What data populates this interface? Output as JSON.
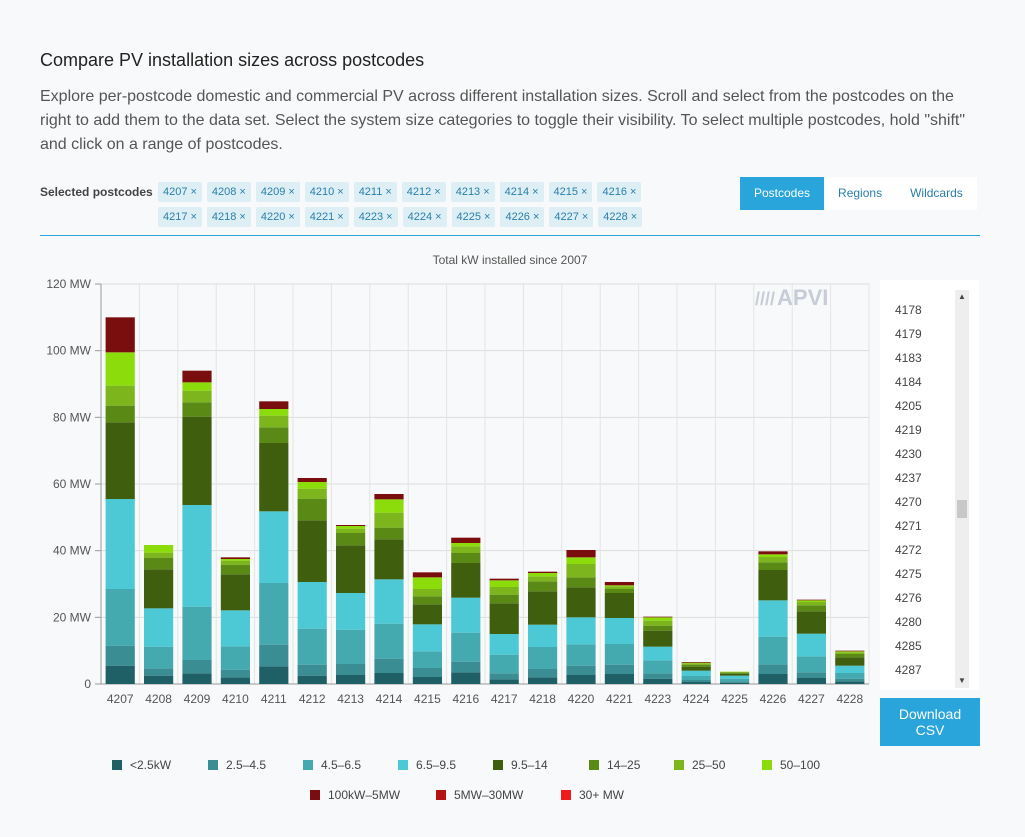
{
  "header": {
    "title": "Compare PV installation sizes across postcodes",
    "description": "Explore per-postcode domestic and commercial PV across different installation sizes. Scroll and select from the postcodes on the right to add them to the data set. Select the system size categories to toggle their visibility. To select multiple postcodes, hold \"shift\" and click on a range of postcodes."
  },
  "selected": {
    "label": "Selected postcodes",
    "remove_symbol": "×",
    "chips": [
      "4207",
      "4208",
      "4209",
      "4210",
      "4211",
      "4212",
      "4213",
      "4214",
      "4215",
      "4216",
      "4217",
      "4218",
      "4220",
      "4221",
      "4223",
      "4224",
      "4225",
      "4226",
      "4227",
      "4228"
    ]
  },
  "tabs": [
    {
      "label": "Postcodes",
      "active": true
    },
    {
      "label": "Regions",
      "active": false
    },
    {
      "label": "Wildcards",
      "active": false
    }
  ],
  "logo": {
    "bars": "////",
    "text": "APVI"
  },
  "postcode_list": {
    "items": [
      "4178",
      "4179",
      "4183",
      "4184",
      "4205",
      "4219",
      "4230",
      "4237",
      "4270",
      "4271",
      "4272",
      "4275",
      "4276",
      "4280",
      "4285",
      "4287"
    ],
    "scroll_up": "▲",
    "scroll_down": "▼"
  },
  "download": {
    "label_line1": "Download",
    "label_line2": "CSV"
  },
  "chart_data": {
    "type": "bar",
    "stacked": true,
    "title": "Total kW installed since 2007",
    "xlabel": "",
    "ylabel": "",
    "ylim": [
      0,
      120
    ],
    "y_ticks": [
      0,
      20,
      40,
      60,
      80,
      100,
      120
    ],
    "y_tick_labels": [
      "0",
      "20 MW",
      "40 MW",
      "60 MW",
      "80 MW",
      "100 MW",
      "120 MW"
    ],
    "grid": true,
    "legend_position": "bottom",
    "categories": [
      "4207",
      "4208",
      "4209",
      "4210",
      "4211",
      "4212",
      "4213",
      "4214",
      "4215",
      "4216",
      "4217",
      "4218",
      "4220",
      "4221",
      "4223",
      "4224",
      "4225",
      "4226",
      "4227",
      "4228"
    ],
    "series": [
      {
        "name": "<2.5kW",
        "color": "#1f5f66",
        "values": [
          5.5,
          2.5,
          3.2,
          2.0,
          5.3,
          2.5,
          2.7,
          3.3,
          2.1,
          3.5,
          1.4,
          2.0,
          2.7,
          3.0,
          1.6,
          0.6,
          0.4,
          3.0,
          1.8,
          0.8
        ]
      },
      {
        "name": "2.5–4.5",
        "color": "#3a8d93",
        "values": [
          6,
          2.2,
          4.0,
          2.3,
          6.5,
          3.3,
          3.3,
          4.3,
          2.7,
          3.2,
          1.8,
          2.5,
          2.8,
          2.8,
          1.6,
          0.6,
          0.4,
          2.9,
          1.7,
          0.8
        ]
      },
      {
        "name": "4.5–6.5",
        "color": "#45a9b0",
        "values": [
          17,
          6.5,
          16,
          7.0,
          18.5,
          10.8,
          10.3,
          10.5,
          5.0,
          8.7,
          5.6,
          6.6,
          6.4,
          6.2,
          3.9,
          1.2,
          0.8,
          8.3,
          4.8,
          1.7
        ]
      },
      {
        "name": "6.5–9.5",
        "color": "#4dc9d6",
        "values": [
          27,
          11.5,
          30.5,
          10.8,
          21.5,
          14.0,
          11.0,
          13.3,
          8.1,
          10.5,
          6.2,
          6.7,
          8.1,
          7.8,
          4.1,
          1.6,
          0.9,
          10.9,
          6.8,
          2.2
        ]
      },
      {
        "name": "9.5–14",
        "color": "#3f5e0e",
        "values": [
          23,
          11.7,
          26.5,
          10.8,
          20.5,
          18.5,
          14.3,
          12.0,
          6.0,
          10.4,
          9.2,
          10.0,
          9.0,
          7.5,
          4.8,
          1.2,
          0.6,
          9.1,
          6.7,
          2.5
        ]
      },
      {
        "name": "14–25",
        "color": "#5a8a15",
        "values": [
          5,
          3.5,
          4.3,
          2.9,
          4.7,
          6.5,
          3.7,
          3.5,
          2.4,
          3.0,
          2.6,
          3.0,
          3.0,
          1.2,
          1.5,
          0.6,
          0.3,
          2.3,
          1.8,
          1.0
        ]
      },
      {
        "name": "25–50",
        "color": "#7db51c",
        "values": [
          6,
          1.5,
          3.5,
          1.2,
          3.5,
          3.0,
          1.3,
          4.5,
          2.2,
          2.0,
          2.3,
          1.5,
          4.0,
          0.8,
          1.5,
          0.4,
          0.2,
          1.6,
          1.0,
          0.5
        ]
      },
      {
        "name": "50–100",
        "color": "#8cdb0a",
        "values": [
          10,
          2.3,
          2.5,
          0.5,
          2.0,
          2.0,
          0.8,
          4.0,
          3.5,
          1.0,
          2.0,
          1.0,
          2.0,
          0.3,
          1.0,
          0.2,
          0.1,
          0.8,
          0.5,
          0.3
        ]
      },
      {
        "name": "100kW–5MW",
        "color": "#7a0d0d",
        "values": [
          10.5,
          0,
          3.5,
          0.5,
          2.3,
          1.2,
          0.3,
          1.6,
          1.5,
          1.6,
          0.5,
          0.4,
          2.2,
          1.0,
          0.2,
          0.2,
          0,
          0.9,
          0.2,
          0.2
        ]
      },
      {
        "name": "5MW–30MW",
        "color": "#b51414",
        "values": [
          0,
          0,
          0,
          0,
          0,
          0,
          0,
          0,
          0,
          0,
          0,
          0,
          0,
          0,
          0,
          0,
          0,
          0,
          0,
          0
        ]
      },
      {
        "name": "30+ MW",
        "color": "#ee1c1c",
        "values": [
          0,
          0,
          0,
          0,
          0,
          0,
          0,
          0,
          0,
          0,
          0,
          0,
          0,
          0,
          0,
          0,
          0,
          0,
          0,
          0
        ]
      }
    ]
  }
}
